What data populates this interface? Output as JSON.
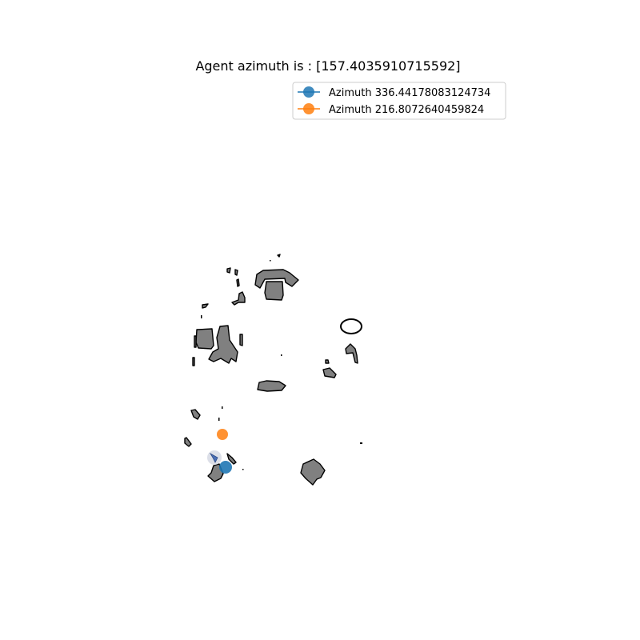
{
  "title": "Agent azimuth is : [157.4035910715592]",
  "legend": {
    "items": [
      {
        "label": "Azimuth 336.44178083124734",
        "color": "#1f77b4"
      },
      {
        "label": "Azimuth 216.8072640459824",
        "color": "#ff7f0e"
      }
    ]
  },
  "agent": {
    "icon": "navigation-arrow-icon",
    "azimuth": 157.4035910715592,
    "color": "#4a6fb5"
  },
  "markers": [
    {
      "name": "azimuth-336-marker",
      "color": "#1f77b4"
    },
    {
      "name": "azimuth-216-marker",
      "color": "#ff7f0e"
    }
  ],
  "map": {
    "obstacle_fill": "#808080",
    "obstacle_stroke": "#000000",
    "background": "#ffffff"
  }
}
